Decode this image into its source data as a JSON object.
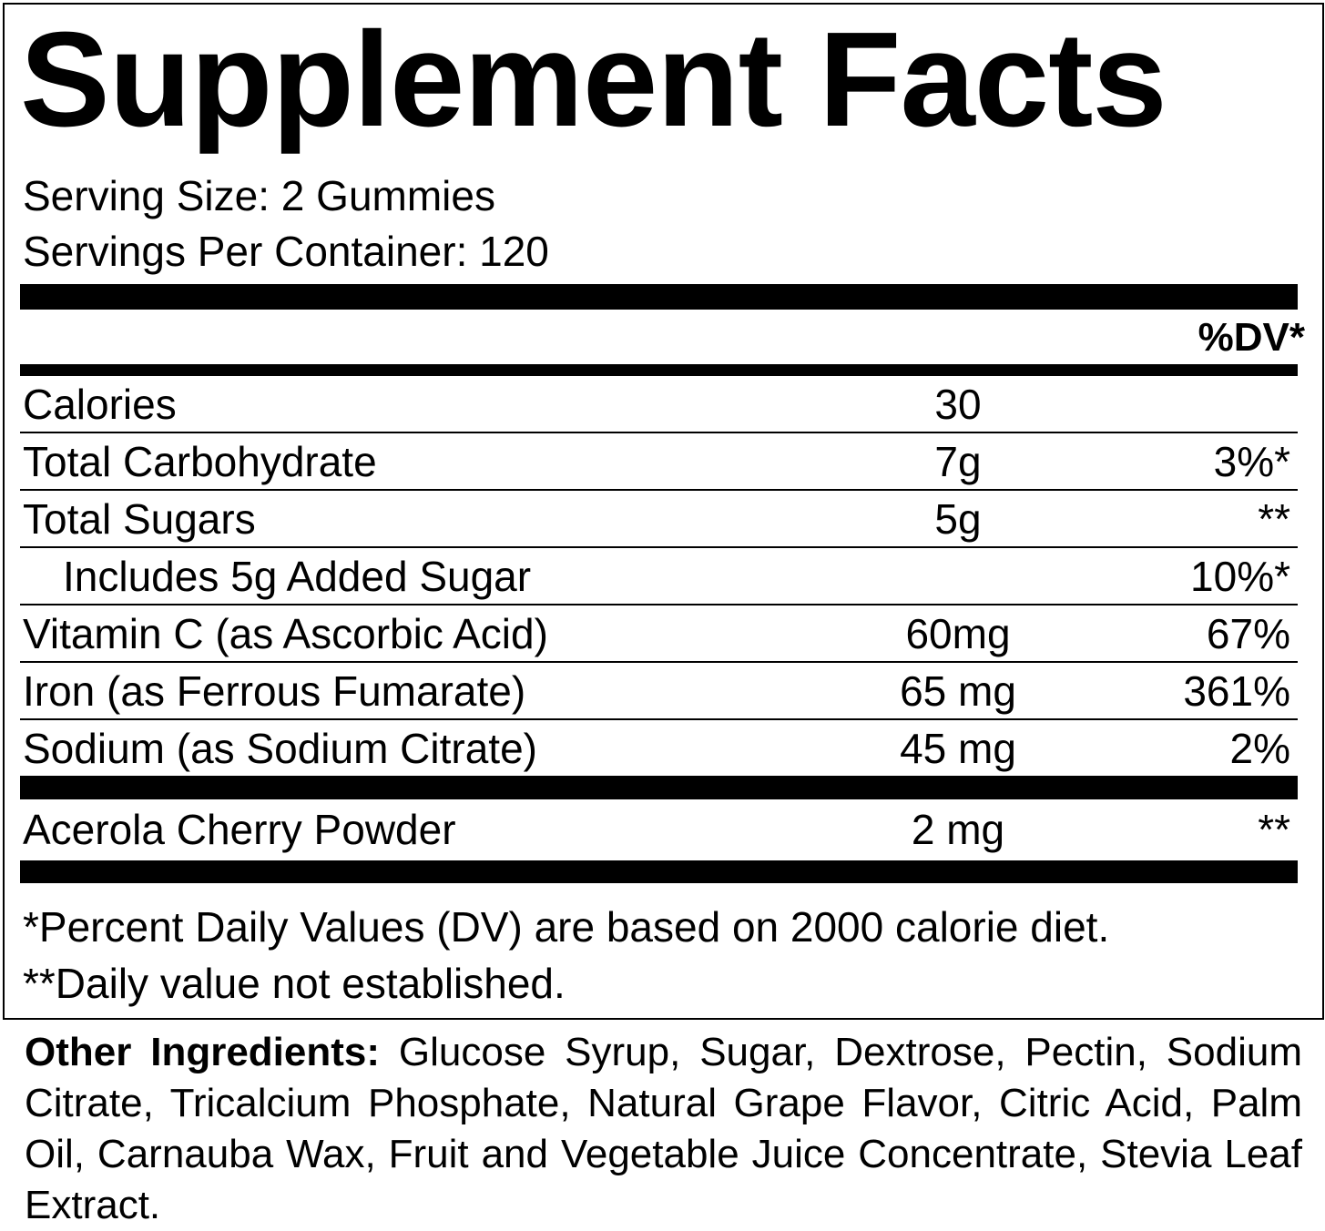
{
  "title": "Supplement Facts",
  "serving": [
    "Serving Size: 2 Gummies",
    "Servings Per Container: 120"
  ],
  "dv_header": "%DV*",
  "rows": [
    {
      "name": "Calories",
      "amount": "30"
    },
    {
      "name": "Total Carbohydrate",
      "amount": "7g",
      "dv": "3%*"
    },
    {
      "name": "Total Sugars",
      "amount": "5g",
      "dv": "**"
    },
    {
      "name": "Includes 5g Added Sugar",
      "dv": "10%*",
      "indent": true
    },
    {
      "name": "Vitamin C (as Ascorbic Acid)",
      "amount": "60mg",
      "dv": "67%"
    },
    {
      "name": "Iron (as Ferrous Fumarate)",
      "amount": "65 mg",
      "dv": "361%"
    },
    {
      "name": "Sodium (as Sodium Citrate)",
      "amount": "45 mg",
      "dv": "2%"
    }
  ],
  "other_rows": [
    {
      "name": "Acerola Cherry Powder",
      "amount": "2 mg",
      "dv": "**"
    }
  ],
  "footnotes": [
    "*Percent Daily Values (DV) are based on 2000 calorie diet.",
    "**Daily value not established."
  ],
  "ingredients": {
    "label": "Other Ingredients:",
    "text": "Glucose Syrup, Sugar, Dextrose, Pectin, Sodium Citrate, Tricalcium Phosphate, Natural Grape Flavor, Citric Acid, Palm Oil, Carnauba Wax, Fruit and Vegetable Juice Concentrate, Stevia Leaf Extract."
  }
}
